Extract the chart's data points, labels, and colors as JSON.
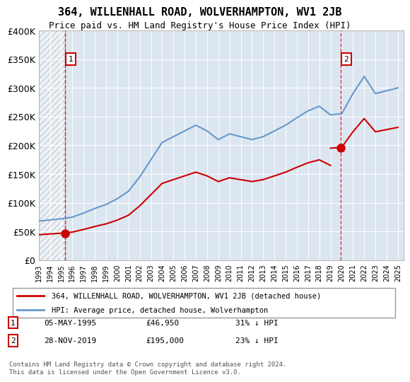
{
  "title": "364, WILLENHALL ROAD, WOLVERHAMPTON, WV1 2JB",
  "subtitle": "Price paid vs. HM Land Registry's House Price Index (HPI)",
  "sale1_date": "05-MAY-1995",
  "sale1_price": 46950,
  "sale1_label": "1",
  "sale1_hpi_diff": "31% ↓ HPI",
  "sale2_date": "28-NOV-2019",
  "sale2_price": 195000,
  "sale2_label": "2",
  "sale2_hpi_diff": "23% ↓ HPI",
  "legend_red": "364, WILLENHALL ROAD, WOLVERHAMPTON, WV1 2JB (detached house)",
  "legend_blue": "HPI: Average price, detached house, Wolverhampton",
  "footer": "Contains HM Land Registry data © Crown copyright and database right 2024.\nThis data is licensed under the Open Government Licence v3.0.",
  "ylim": [
    0,
    400000
  ],
  "yticks": [
    0,
    50000,
    100000,
    150000,
    200000,
    250000,
    300000,
    350000,
    400000
  ],
  "ytick_labels": [
    "£0",
    "£50K",
    "£100K",
    "£150K",
    "£200K",
    "£250K",
    "£300K",
    "£350K",
    "£400K"
  ],
  "red_line_color": "#cc0000",
  "blue_line_color": "#6699cc",
  "marker_color": "#cc0000",
  "hatch_color": "#cccccc",
  "bg_color": "#dce6f1",
  "grid_color": "#ffffff",
  "box_color": "#cc0000",
  "dashed_line_color": "#cc0000"
}
